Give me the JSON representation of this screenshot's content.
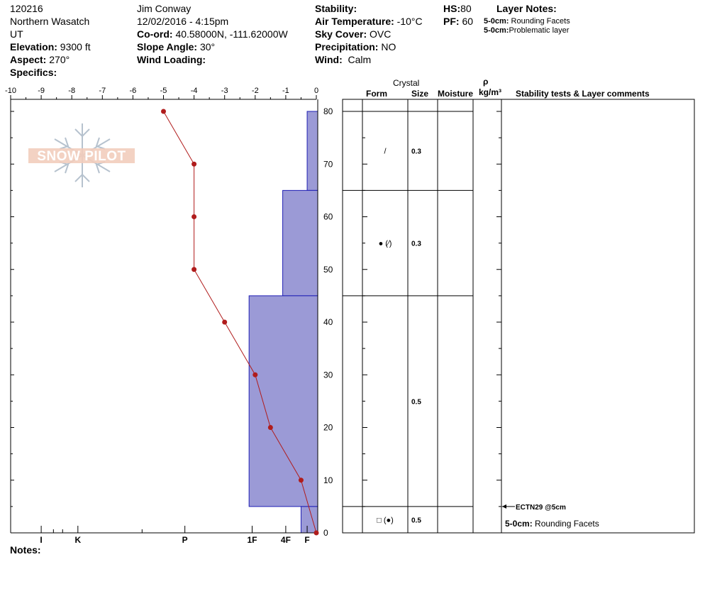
{
  "header": {
    "id": "120216",
    "region": "Northern Wasatch",
    "state": "UT",
    "elevation_label": "Elevation:",
    "elevation_value": "9300 ft",
    "aspect_label": "Aspect:",
    "aspect_value": "270°",
    "specifics_label": "Specifics:",
    "observer": "Jim Conway",
    "datetime": "12/02/2016 - 4:15pm",
    "coord_label": "Co-ord:",
    "coord_value": "40.58000N, -111.62000W",
    "slope_label": "Slope Angle:",
    "slope_value": "30°",
    "wind_loading_label": "Wind Loading:",
    "stability_label": "Stability:",
    "air_temp_label": "Air Temperature:",
    "air_temp_value": "-10°C",
    "sky_label": "Sky Cover:",
    "sky_value": "OVC",
    "precip_label": "Precipitation:",
    "precip_value": "NO",
    "wind_label": "Wind:",
    "wind_value": "Calm",
    "hs_label": "HS:",
    "hs_value": "80",
    "pf_label": "PF:",
    "pf_value": "60",
    "layer_notes_title": "Layer Notes:",
    "layer_notes": [
      {
        "depth": "5-0cm:",
        "text": "Rounding Facets"
      },
      {
        "depth": "5-0cm:",
        "text": "Problematic layer"
      }
    ]
  },
  "logo_text": "SNOW PILOT",
  "columns": {
    "crystal": "Crystal",
    "form": "Form",
    "size": "Size",
    "moisture": "Moisture",
    "rho": "ρ",
    "density_unit": "kg/m³",
    "stability": "Stability tests & Layer comments"
  },
  "notes_label": "Notes:",
  "chart_data": {
    "type": "snow-profile",
    "temperature_axis": {
      "ticks": [
        -10,
        -9,
        -8,
        -7,
        -6,
        -5,
        -4,
        -3,
        -2,
        -1,
        0
      ],
      "labels": [
        "-10",
        "-9",
        "-8",
        "-7",
        "-6",
        "-5",
        "-4",
        "-3",
        "-2",
        "-1",
        "0"
      ],
      "range": [
        -10,
        0
      ]
    },
    "height_axis": {
      "ticks": [
        0,
        10,
        20,
        30,
        40,
        50,
        60,
        70,
        80
      ],
      "labels": [
        "0",
        "10",
        "20",
        "30",
        "40",
        "50",
        "60",
        "70",
        "80"
      ],
      "range": [
        0,
        82
      ]
    },
    "hardness_axis": {
      "labels": [
        "I",
        "K",
        "P",
        "1F",
        "4F",
        "F"
      ],
      "values": [
        -9.0,
        -7.8,
        -4.3,
        -2.1,
        -1.0,
        -0.3
      ]
    },
    "temperature_profile": {
      "color": "#b01c1c",
      "points": [
        {
          "height": 80,
          "temp": -5
        },
        {
          "height": 70,
          "temp": -4
        },
        {
          "height": 60,
          "temp": -4
        },
        {
          "height": 50,
          "temp": -4
        },
        {
          "height": 40,
          "temp": -3
        },
        {
          "height": 30,
          "temp": -2
        },
        {
          "height": 20,
          "temp": -1.5
        },
        {
          "height": 10,
          "temp": -0.5
        },
        {
          "height": 0,
          "temp": 0
        }
      ]
    },
    "hardness_layers": {
      "fill": "#9b9ad6",
      "stroke": "#1e1eb4",
      "layers": [
        {
          "bottom": 65,
          "top": 80,
          "hardness": -0.3
        },
        {
          "bottom": 45,
          "top": 65,
          "hardness": -1.1
        },
        {
          "bottom": 5,
          "top": 45,
          "hardness": -2.2
        },
        {
          "bottom": 0,
          "top": 5,
          "hardness": -0.5
        }
      ]
    },
    "layer_boundaries": [
      80,
      65,
      45,
      5,
      0
    ],
    "layers": [
      {
        "mid": 72.5,
        "form": "/",
        "size": "0.3"
      },
      {
        "mid": 55,
        "form": "● (⁄)",
        "size": "0.3"
      },
      {
        "mid": 25,
        "form": "",
        "size": "0.5"
      },
      {
        "mid": 2.5,
        "form": "□ (●)",
        "size": "0.5"
      }
    ],
    "stability_test": {
      "height": 5,
      "label": "ECTN29 @5cm"
    },
    "layer_comment": {
      "depth": "5-0cm:",
      "text": "Rounding Facets"
    }
  }
}
